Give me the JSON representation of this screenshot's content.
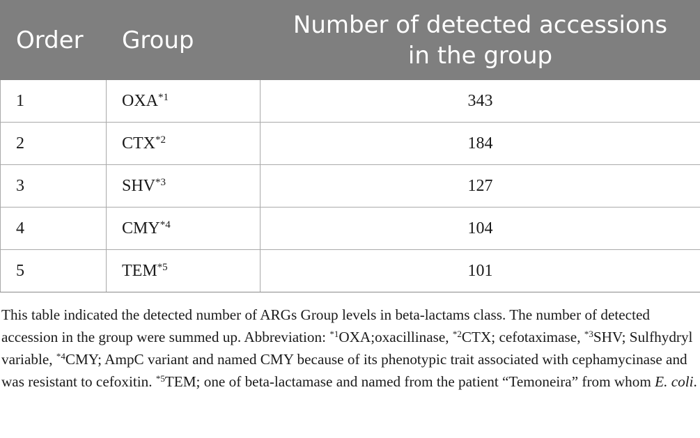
{
  "table": {
    "headers": [
      "Order",
      "Group",
      "Number of detected accessions in the group"
    ],
    "rows": [
      {
        "order": "1",
        "group": "OXA",
        "mark": "*1",
        "count": "343"
      },
      {
        "order": "2",
        "group": "CTX",
        "mark": "*2",
        "count": "184"
      },
      {
        "order": "3",
        "group": "SHV",
        "mark": "*3",
        "count": "127"
      },
      {
        "order": "4",
        "group": "CMY",
        "mark": "*4",
        "count": "104"
      },
      {
        "order": "5",
        "group": "TEM",
        "mark": "*5",
        "count": "101"
      }
    ]
  },
  "footnote": {
    "intro": "This table indicated the detected number of ARGs Group levels in beta-lactams class. The number of detected accession in the group were summed up. Abbreviation: ",
    "a1_mark": "*1",
    "a1_text": "OXA;oxacillinase, ",
    "a2_mark": "*2",
    "a2_text": "CTX; cefotaximase, ",
    "a3_mark": "*3",
    "a3_text": "SHV; Sulfhydryl variable, ",
    "a4_mark": "*4",
    "a4_text": "CMY; AmpC variant and named CMY because of its phenotypic trait associated with cephamycinase and was resistant to cefoxitin. ",
    "a5_mark": "*5",
    "a5_text": "TEM; one of beta-lactamase and named from the patient “Temoneira” from whom ",
    "a5_italic": "E. coli",
    "a5_end": "."
  }
}
